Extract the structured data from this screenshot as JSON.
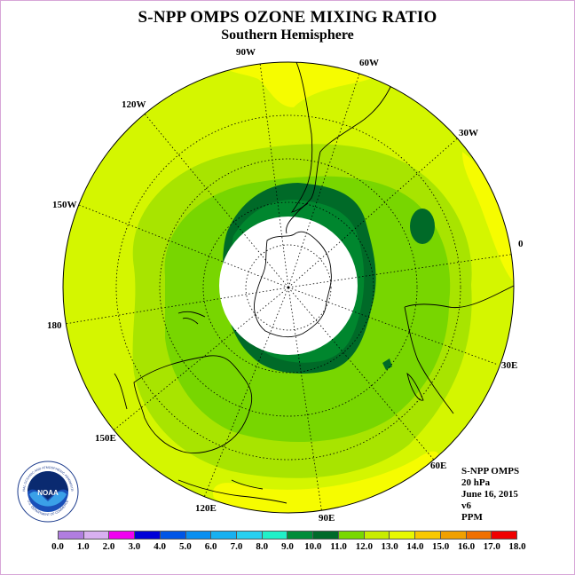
{
  "title": "S-NPP OMPS OZONE MIXING RATIO",
  "subtitle": "Southern Hemisphere",
  "longitude_labels": [
    {
      "text": "90W",
      "key": "lon90w"
    },
    {
      "text": "60W",
      "key": "lon60w"
    },
    {
      "text": "120W",
      "key": "lon120w"
    },
    {
      "text": "30W",
      "key": "lon30w"
    },
    {
      "text": "150W",
      "key": "lon150w"
    },
    {
      "text": "0",
      "key": "lon0"
    },
    {
      "text": "180",
      "key": "lon180"
    },
    {
      "text": "30E",
      "key": "lon30e"
    },
    {
      "text": "150E",
      "key": "lon150e"
    },
    {
      "text": "60E",
      "key": "lon60e"
    },
    {
      "text": "120E",
      "key": "lon120e"
    },
    {
      "text": "90E",
      "key": "lon90e"
    }
  ],
  "info": {
    "instrument": "S-NPP OMPS",
    "level": "20 hPa",
    "date": "June 16, 2015",
    "version": "v6",
    "units": "PPM"
  },
  "logo": {
    "text": "NOAA",
    "ring_text": "NATIONAL OCEANIC AND ATMOSPHERIC ADMINISTRATION",
    "ring_text_bottom": "U.S. DEPARTMENT OF COMMERCE"
  },
  "colorbar": {
    "ticks": [
      "0.0",
      "1.0",
      "2.0",
      "3.0",
      "4.0",
      "5.0",
      "6.0",
      "7.0",
      "8.0",
      "9.0",
      "10.0",
      "11.0",
      "12.0",
      "13.0",
      "14.0",
      "15.0",
      "16.0",
      "17.0",
      "18.0"
    ],
    "colors": [
      "#b07de0",
      "#d8b0f0",
      "#f000f0",
      "#0000d8",
      "#0055e6",
      "#0a8ff0",
      "#18b0f0",
      "#28d0f0",
      "#20f0c8",
      "#008c3a",
      "#006a2a",
      "#78d800",
      "#c8ec00",
      "#e8f800",
      "#f8c800",
      "#f0a000",
      "#f07000",
      "#f00000",
      "#8c5a3a"
    ]
  },
  "map": {
    "colors": {
      "yellow": "#f6fc00",
      "lime": "#d4f600",
      "light_green": "#a8e400",
      "green": "#78d600",
      "mid_green": "#00862e",
      "dark_green": "#006a28",
      "polar_night": "#ffffff"
    }
  }
}
